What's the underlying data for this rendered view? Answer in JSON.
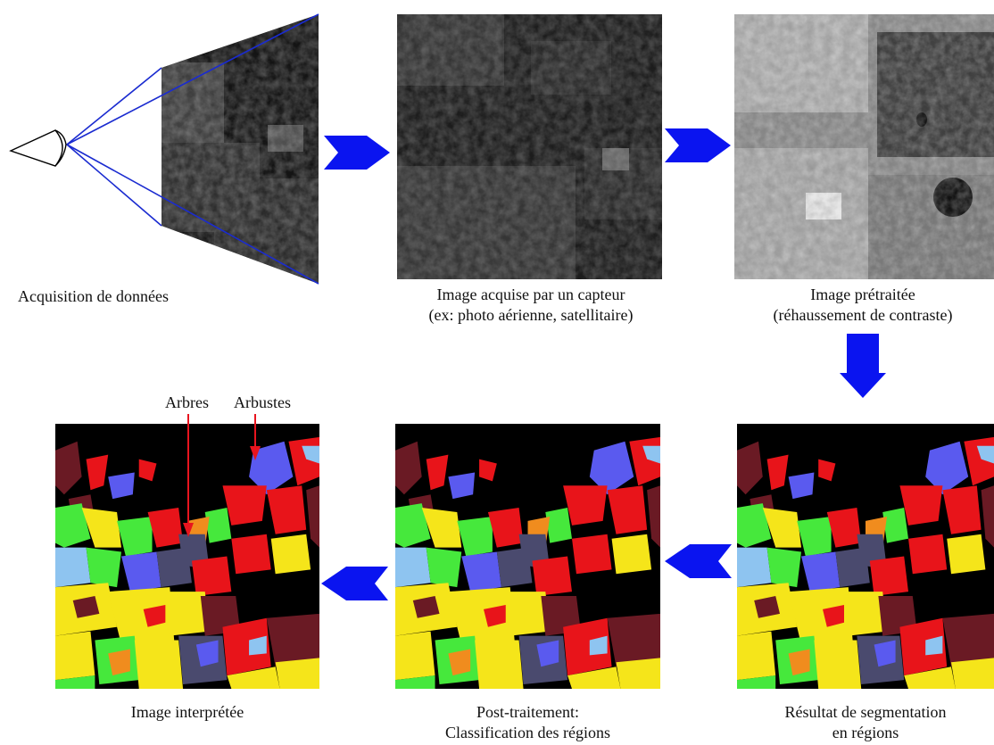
{
  "captions": {
    "acquisition": "Acquisition de données",
    "acquired_line1": "Image acquise par un capteur",
    "acquired_line2": "(ex: photo aérienne, satellitaire)",
    "preprocessed_line1": "Image prétraitée",
    "preprocessed_line2": "(réhaussement de contraste)",
    "segmentation_line1": "Résultat de segmentation",
    "segmentation_line2": "en régions",
    "post_line1": "Post-traitement:",
    "post_line2": "Classification des régions",
    "interpreted": "Image interprétée"
  },
  "annotations": {
    "trees": "Arbres",
    "shrubs": "Arbustes"
  },
  "colors": {
    "flow_arrow": "#0a14f0",
    "annotation_arrow": "#e8141e",
    "sight_lines": "#1a2bd0",
    "region_palette": [
      "#f5e51a",
      "#e8141a",
      "#46e83c",
      "#5a5aef",
      "#6a1a24",
      "#f08c1e",
      "#8ec4f0",
      "#4a4a6e",
      "#000000"
    ]
  },
  "icons": {
    "eye": "eye-icon",
    "flow_arrow": "blue-block-arrow-icon"
  }
}
